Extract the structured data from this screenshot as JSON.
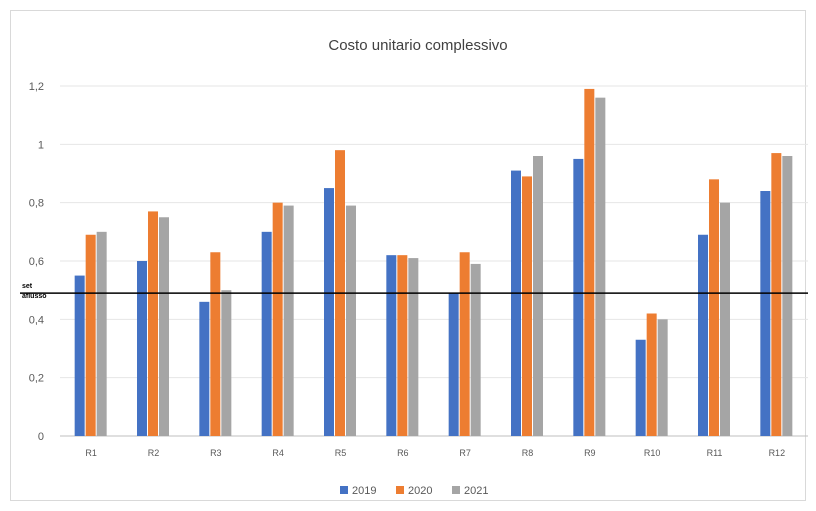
{
  "chart_data": {
    "type": "bar",
    "title": "Costo unitario complessivo",
    "xlabel": "",
    "ylabel": "",
    "ylim": [
      0,
      1.2
    ],
    "yticks": [
      0,
      0.2,
      0.4,
      0.6,
      0.8,
      1,
      1.2
    ],
    "ytick_labels": [
      "0",
      "0,2",
      "0,4",
      "0,6",
      "0,8",
      "1",
      "1,2"
    ],
    "categories": [
      "R1",
      "R2",
      "R3",
      "R4",
      "R5",
      "R6",
      "R7",
      "R8",
      "R9",
      "R10",
      "R11",
      "R12"
    ],
    "series": [
      {
        "name": "2019",
        "color": "#4472c4",
        "values": [
          0.55,
          0.6,
          0.46,
          0.7,
          0.85,
          0.62,
          0.49,
          0.91,
          0.95,
          0.33,
          0.69,
          0.84
        ]
      },
      {
        "name": "2020",
        "color": "#ed7d31",
        "values": [
          0.69,
          0.77,
          0.63,
          0.8,
          0.98,
          0.62,
          0.63,
          0.89,
          1.19,
          0.42,
          0.88,
          0.97
        ]
      },
      {
        "name": "2021",
        "color": "#a5a5a5",
        "values": [
          0.7,
          0.75,
          0.5,
          0.79,
          0.79,
          0.61,
          0.59,
          0.96,
          1.16,
          0.4,
          0.8,
          0.96
        ]
      }
    ],
    "reference_line": {
      "value": 0.49,
      "label": "set aflusso",
      "color": "#000000"
    },
    "grid": true,
    "legend_position": "bottom"
  }
}
